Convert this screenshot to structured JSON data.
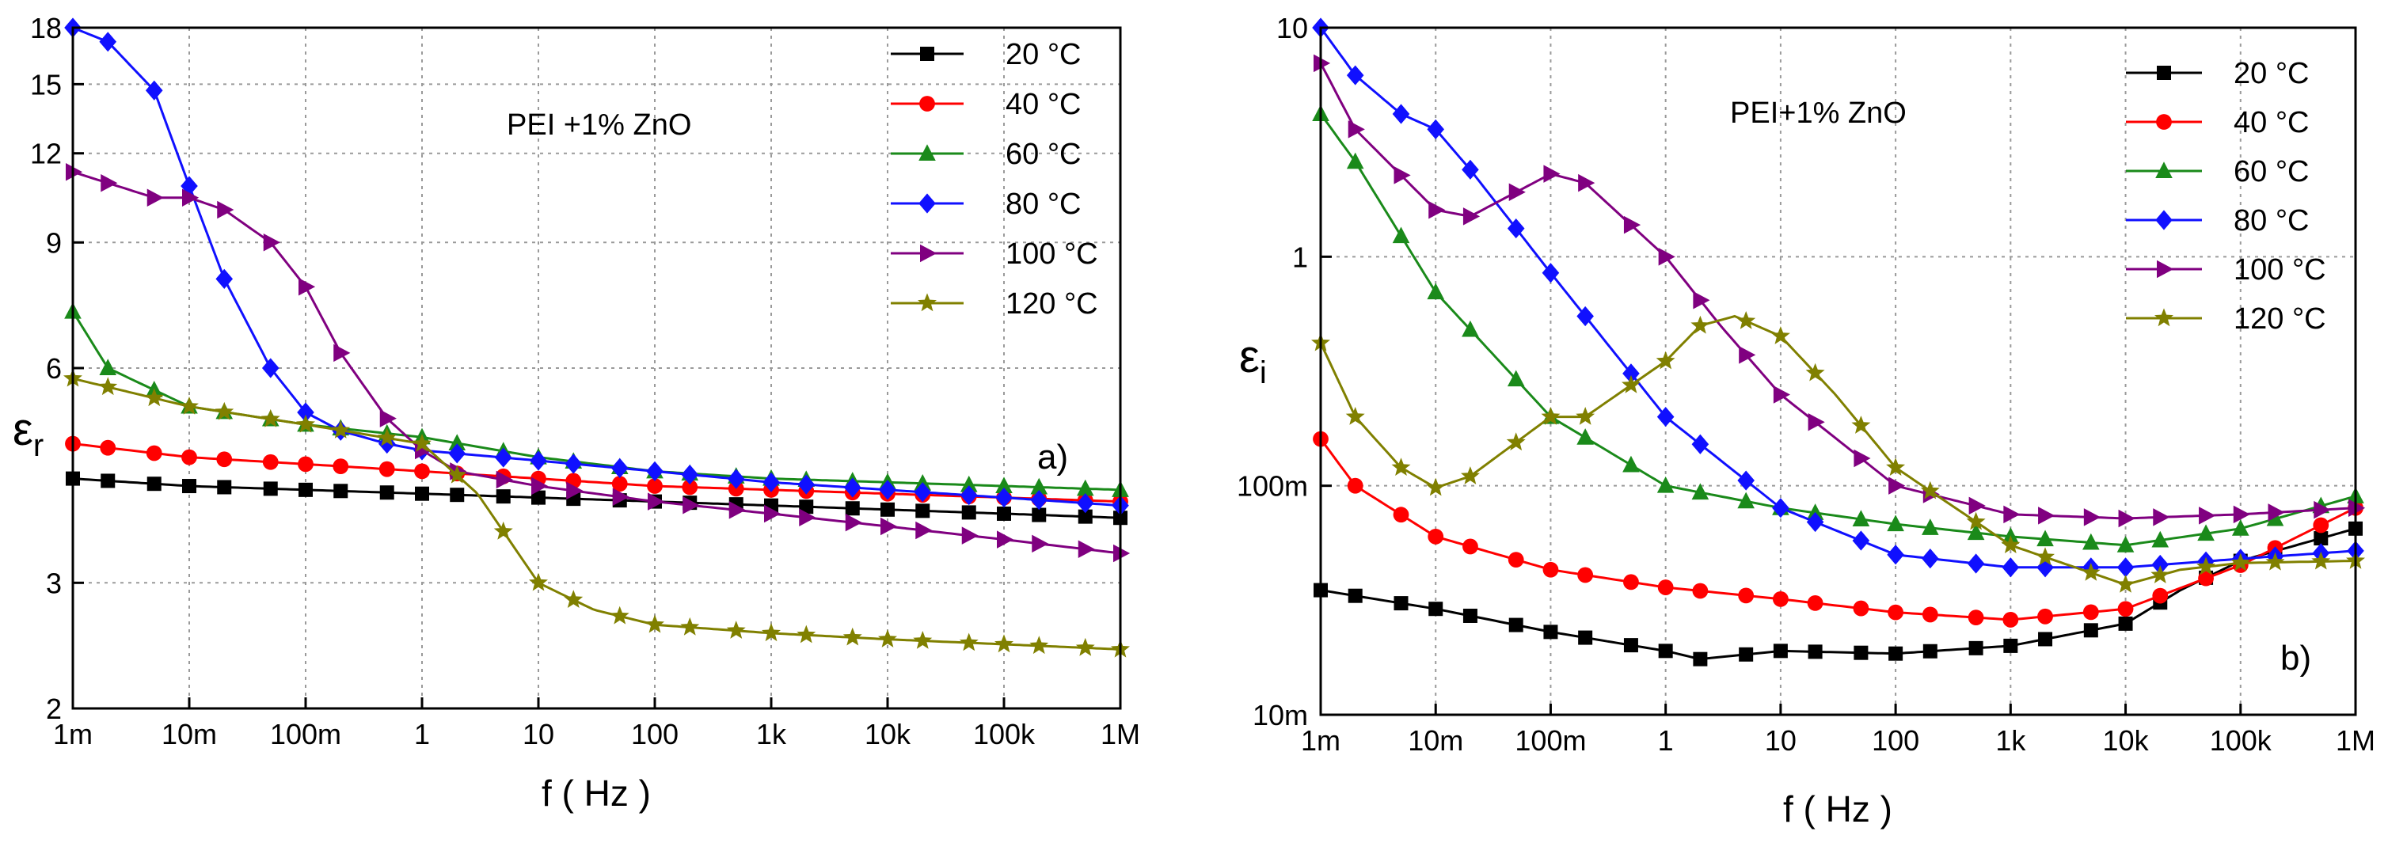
{
  "colors": {
    "20": "#000000",
    "40": "#ff0000",
    "60": "#1a8a1a",
    "80": "#1010ff",
    "100": "#800080",
    "120": "#808000"
  },
  "chart_data": [
    {
      "type": "line",
      "panel_label": "a)",
      "annotation": "PEI +1% ZnO",
      "xlabel": "f ( Hz )",
      "ylabel_main": "ε",
      "ylabel_sub": "r",
      "xscale": "log",
      "yscale": "log",
      "xlim": [
        0.001,
        1000000
      ],
      "ylim": [
        2,
        18
      ],
      "grid": true,
      "legend_position": "top-right",
      "x_ticks": [
        0.001,
        0.01,
        0.1,
        1,
        10,
        100,
        1000,
        10000,
        100000,
        1000000
      ],
      "x_tick_labels": [
        "1m",
        "10m",
        "100m",
        "1",
        "10",
        "100",
        "1k",
        "10k",
        "100k",
        "1M"
      ],
      "y_ticks": [
        2,
        3,
        6,
        9,
        12,
        15,
        18
      ],
      "y_tick_labels": [
        "2",
        "3",
        "6",
        "9",
        "12",
        "15",
        "18"
      ],
      "series": [
        {
          "name": "20",
          "legend": "20 °C",
          "marker": "square",
          "color": "#000000",
          "x": [
            0.001,
            0.01,
            0.1,
            1,
            10,
            100,
            1000,
            10000,
            100000,
            1000000
          ],
          "y": [
            4.2,
            4.1,
            4.05,
            4.0,
            3.95,
            3.9,
            3.85,
            3.8,
            3.75,
            3.7
          ]
        },
        {
          "name": "40",
          "legend": "40 °C",
          "marker": "circle",
          "color": "#ff0000",
          "x": [
            0.001,
            0.01,
            0.1,
            1,
            10,
            100,
            1000,
            10000,
            100000,
            1000000
          ],
          "y": [
            4.7,
            4.5,
            4.4,
            4.3,
            4.2,
            4.1,
            4.05,
            4.0,
            3.95,
            3.9
          ]
        },
        {
          "name": "60",
          "legend": "60 °C",
          "marker": "triangle",
          "color": "#1a8a1a",
          "x": [
            0.001,
            0.002,
            0.01,
            0.1,
            1,
            10,
            100,
            1000,
            10000,
            100000,
            1000000
          ],
          "y": [
            7.2,
            6.0,
            5.3,
            5.0,
            4.8,
            4.5,
            4.3,
            4.2,
            4.15,
            4.1,
            4.05
          ]
        },
        {
          "name": "80",
          "legend": "80 °C",
          "marker": "diamond",
          "color": "#1010ff",
          "x": [
            0.001,
            0.002,
            0.005,
            0.01,
            0.02,
            0.05,
            0.1,
            0.2,
            0.5,
            1,
            10,
            100,
            1000,
            10000,
            100000,
            1000000
          ],
          "y": [
            18.0,
            17.2,
            14.7,
            10.8,
            8.0,
            6.0,
            5.2,
            4.9,
            4.7,
            4.6,
            4.45,
            4.3,
            4.15,
            4.05,
            3.95,
            3.85
          ]
        },
        {
          "name": "100",
          "legend": "100 °C",
          "marker": "triangle-right",
          "color": "#800080",
          "x": [
            0.001,
            0.005,
            0.01,
            0.02,
            0.05,
            0.1,
            0.2,
            0.5,
            1,
            2,
            10,
            100,
            1000,
            10000,
            100000,
            1000000
          ],
          "y": [
            11.3,
            10.4,
            10.4,
            10.0,
            9.0,
            7.8,
            6.3,
            5.1,
            4.6,
            4.3,
            4.1,
            3.9,
            3.75,
            3.6,
            3.45,
            3.3
          ]
        },
        {
          "name": "120",
          "legend": "120 °C",
          "marker": "star",
          "color": "#808000",
          "x": [
            0.001,
            0.01,
            0.1,
            1,
            3,
            10,
            30,
            100,
            1000,
            10000,
            100000,
            1000000
          ],
          "y": [
            5.8,
            5.3,
            5.0,
            4.7,
            4.0,
            3.0,
            2.75,
            2.62,
            2.55,
            2.5,
            2.46,
            2.42
          ]
        }
      ]
    },
    {
      "type": "line",
      "panel_label": "b)",
      "annotation": "PEI+1% ZnO",
      "xlabel": "f ( Hz )",
      "ylabel_main": "ε",
      "ylabel_sub": "i",
      "xscale": "log",
      "yscale": "log",
      "xlim": [
        0.001,
        1000000
      ],
      "ylim": [
        0.01,
        10
      ],
      "grid": true,
      "legend_position": "top-right",
      "x_ticks": [
        0.001,
        0.01,
        0.1,
        1,
        10,
        100,
        1000,
        10000,
        100000,
        1000000
      ],
      "x_tick_labels": [
        "1m",
        "10m",
        "100m",
        "1",
        "10",
        "100",
        "1k",
        "10k",
        "100k",
        "1M"
      ],
      "y_ticks": [
        0.01,
        0.1,
        1,
        10
      ],
      "y_tick_labels": [
        "10m",
        "100m",
        "1",
        "10"
      ],
      "series": [
        {
          "name": "20",
          "legend": "20 °C",
          "marker": "square",
          "color": "#000000",
          "x": [
            0.001,
            0.01,
            0.1,
            1,
            2,
            10,
            100,
            1000,
            10000,
            30000,
            100000,
            1000000
          ],
          "y": [
            0.035,
            0.029,
            0.023,
            0.019,
            0.0175,
            0.019,
            0.0185,
            0.02,
            0.025,
            0.035,
            0.047,
            0.065
          ]
        },
        {
          "name": "40",
          "legend": "40 °C",
          "marker": "circle",
          "color": "#ff0000",
          "x": [
            0.001,
            0.002,
            0.01,
            0.1,
            1,
            10,
            100,
            1000,
            10000,
            100000,
            1000000
          ],
          "y": [
            0.16,
            0.1,
            0.06,
            0.043,
            0.036,
            0.032,
            0.028,
            0.026,
            0.029,
            0.045,
            0.08
          ]
        },
        {
          "name": "60",
          "legend": "60 °C",
          "marker": "triangle",
          "color": "#1a8a1a",
          "x": [
            0.001,
            0.002,
            0.01,
            0.1,
            1,
            10,
            100,
            1000,
            10000,
            100000,
            1000000
          ],
          "y": [
            4.2,
            2.6,
            0.7,
            0.2,
            0.1,
            0.08,
            0.068,
            0.06,
            0.055,
            0.065,
            0.09
          ]
        },
        {
          "name": "80",
          "legend": "80 °C",
          "marker": "diamond",
          "color": "#1010ff",
          "x": [
            0.001,
            0.002,
            0.005,
            0.01,
            0.02,
            0.1,
            1,
            10,
            100,
            1000,
            10000,
            100000,
            1000000
          ],
          "y": [
            10.0,
            6.2,
            4.2,
            3.6,
            2.4,
            0.85,
            0.2,
            0.08,
            0.05,
            0.044,
            0.044,
            0.048,
            0.052
          ]
        },
        {
          "name": "100",
          "legend": "100 °C",
          "marker": "triangle-right",
          "color": "#800080",
          "x": [
            0.001,
            0.002,
            0.01,
            0.02,
            0.1,
            0.2,
            1,
            3,
            10,
            100,
            1000,
            10000,
            100000,
            1000000
          ],
          "y": [
            7.0,
            3.6,
            1.6,
            1.5,
            2.3,
            2.1,
            1.0,
            0.5,
            0.25,
            0.1,
            0.075,
            0.072,
            0.075,
            0.08
          ]
        },
        {
          "name": "120",
          "legend": "120 °C",
          "marker": "star",
          "color": "#808000",
          "x": [
            0.001,
            0.002,
            0.005,
            0.01,
            0.02,
            0.1,
            0.2,
            1,
            2,
            4,
            10,
            30,
            100,
            1000,
            10000,
            30000,
            100000,
            1000000
          ],
          "y": [
            0.42,
            0.2,
            0.12,
            0.098,
            0.11,
            0.2,
            0.2,
            0.35,
            0.5,
            0.55,
            0.45,
            0.25,
            0.12,
            0.055,
            0.037,
            0.043,
            0.046,
            0.047
          ]
        }
      ]
    }
  ]
}
